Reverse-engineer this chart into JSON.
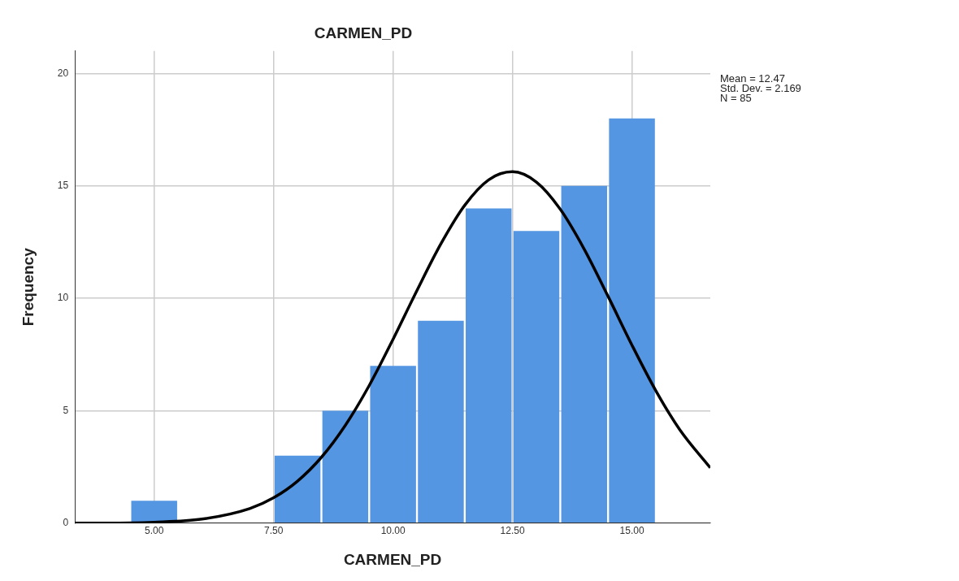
{
  "chart_data": {
    "type": "histogram",
    "title": "CARMEN_PD",
    "xlabel": "CARMEN_PD",
    "ylabel": "Frequency",
    "bins": [
      4.5,
      5.5,
      6.5,
      7.5,
      8.5,
      9.5,
      10.5,
      11.5,
      12.5,
      13.5,
      14.5,
      15.5
    ],
    "series": [
      {
        "color": "#5596e3",
        "values": [
          1,
          0,
          0,
          3,
          5,
          7,
          9,
          14,
          13,
          15,
          18
        ]
      },
      {
        "type": "line",
        "color": "#000000",
        "x": [
          3.34,
          4,
          5,
          6,
          7,
          7.5,
          8,
          8.5,
          9,
          9.5,
          10,
          10.5,
          11,
          11.5,
          12,
          12.5,
          13,
          13.5,
          14,
          14.5,
          15,
          15.5,
          16,
          16.64
        ],
        "values": [
          0,
          0,
          0.04,
          0.18,
          0.65,
          1.13,
          1.87,
          2.93,
          4.35,
          6.12,
          8.18,
          10.35,
          12.42,
          14.14,
          15.27,
          15.63,
          15.17,
          13.96,
          12.19,
          10.09,
          7.92,
          5.89,
          4.16,
          2.46
        ]
      }
    ],
    "xlim": [
      3.34,
      16.64
    ],
    "ylim": [
      0,
      21
    ],
    "xticks": [
      {
        "value": 5,
        "label": "5.00"
      },
      {
        "value": 7.5,
        "label": "7.50"
      },
      {
        "value": 10,
        "label": "10.00"
      },
      {
        "value": 12.5,
        "label": "12.50"
      },
      {
        "value": 15,
        "label": "15.00"
      }
    ],
    "yticks": [
      0,
      5,
      10,
      15,
      20
    ],
    "grid": true,
    "legend": false,
    "marker": "none",
    "line_style": "solid",
    "annotations": [
      "Mean = 12.47",
      "Std. Dev. = 2.169",
      "N = 85"
    ]
  }
}
